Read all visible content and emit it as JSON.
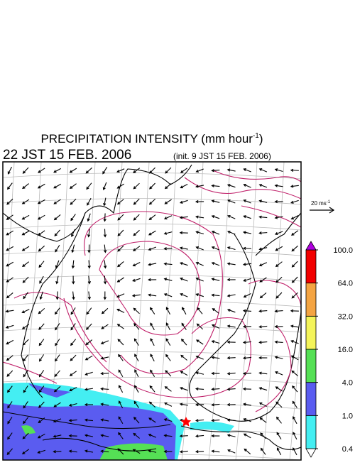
{
  "header": {
    "title": "PRECIPITATION INTENSITY (mm hour",
    "title_sup": "-1",
    "title_close": ")",
    "valid_time": "22 JST 15 FEB. 2006",
    "init_time": "(init. 9 JST 15 FEB. 2006)"
  },
  "vector_scale": {
    "label": "20 ms",
    "label_sup": "-1"
  },
  "colorbar": {
    "levels": [
      {
        "value": 0.4,
        "label": "0.4"
      },
      {
        "value": 1,
        "label": "1.0"
      },
      {
        "value": 4,
        "label": "4.0"
      },
      {
        "value": 16,
        "label": "16.0"
      },
      {
        "value": 32,
        "label": "32.0"
      },
      {
        "value": 64,
        "label": "64.0"
      },
      {
        "value": 100,
        "label": "100.0"
      }
    ],
    "colors": [
      "#44eef2",
      "#5a5cf0",
      "#55e055",
      "#f4f45a",
      "#f4a442",
      "#f20000"
    ],
    "over_color": "#b000e0",
    "under_color": "#ffffff"
  }
}
